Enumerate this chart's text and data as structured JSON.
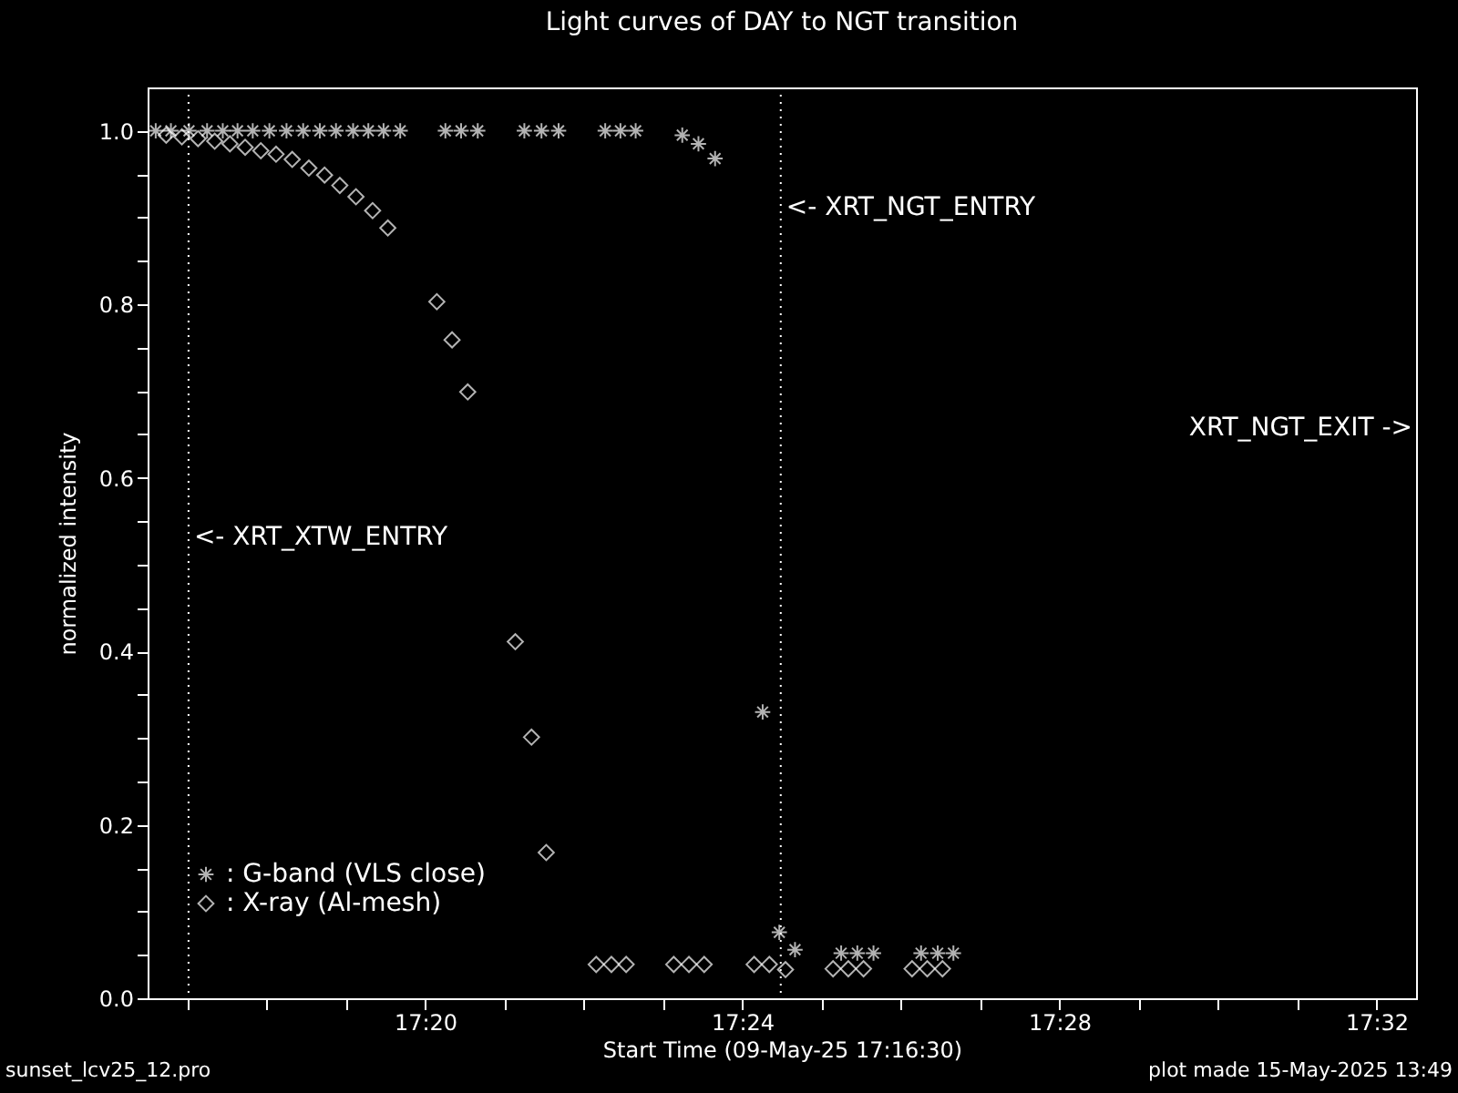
{
  "chart_data": {
    "type": "scatter",
    "title": "Light curves of DAY to NGT transition",
    "xlabel": "Start Time (09-May-25 17:16:30)",
    "ylabel": "normalized intensity",
    "xlim": [
      17.275,
      17.541667
    ],
    "xticks": [
      {
        "value": 17.283333,
        "label": null
      },
      {
        "value": 17.3,
        "label": null
      },
      {
        "value": 17.316667,
        "label": null
      },
      {
        "value": 17.333333,
        "label": "17:20"
      },
      {
        "value": 17.35,
        "label": null
      },
      {
        "value": 17.366667,
        "label": null
      },
      {
        "value": 17.383333,
        "label": null
      },
      {
        "value": 17.4,
        "label": "17:24"
      },
      {
        "value": 17.416667,
        "label": null
      },
      {
        "value": 17.433333,
        "label": null
      },
      {
        "value": 17.45,
        "label": null
      },
      {
        "value": 17.466667,
        "label": "17:28"
      },
      {
        "value": 17.483333,
        "label": null
      },
      {
        "value": 17.5,
        "label": null
      },
      {
        "value": 17.516667,
        "label": null
      },
      {
        "value": 17.533333,
        "label": "17:32"
      }
    ],
    "ylim": [
      0,
      1.05
    ],
    "yticks": [
      {
        "value": 0,
        "label": "0.0"
      },
      {
        "value": 0.05,
        "label": null
      },
      {
        "value": 0.1,
        "label": null
      },
      {
        "value": 0.15,
        "label": null
      },
      {
        "value": 0.2,
        "label": "0.2"
      },
      {
        "value": 0.25,
        "label": null
      },
      {
        "value": 0.3,
        "label": null
      },
      {
        "value": 0.35,
        "label": null
      },
      {
        "value": 0.4,
        "label": "0.4"
      },
      {
        "value": 0.45,
        "label": null
      },
      {
        "value": 0.5,
        "label": null
      },
      {
        "value": 0.55,
        "label": null
      },
      {
        "value": 0.6,
        "label": "0.6"
      },
      {
        "value": 0.65,
        "label": null
      },
      {
        "value": 0.7,
        "label": null
      },
      {
        "value": 0.75,
        "label": null
      },
      {
        "value": 0.8,
        "label": "0.8"
      },
      {
        "value": 0.85,
        "label": null
      },
      {
        "value": 0.9,
        "label": null
      },
      {
        "value": 0.95,
        "label": null
      },
      {
        "value": 1.0,
        "label": "1.0"
      }
    ],
    "legend": "bottom left",
    "series": [
      {
        "name": ": G-band (VLS close)",
        "color": "#ffffff",
        "marker": "cross",
        "x": [
          17.2767,
          17.2799,
          17.2837,
          17.2875,
          17.2908,
          17.2939,
          17.2971,
          17.3006,
          17.3042,
          17.3077,
          17.3112,
          17.3146,
          17.3182,
          17.3214,
          17.3246,
          17.3281,
          17.3376,
          17.3409,
          17.3444,
          17.3542,
          17.3578,
          17.3614,
          17.3712,
          17.3744,
          17.3776,
          17.3874,
          17.3908,
          17.3943,
          17.4043,
          17.4078,
          17.4111,
          17.4208,
          17.4242,
          17.4276,
          17.4376,
          17.4411,
          17.4444
        ],
        "values": [
          1.0,
          1.0,
          1.0,
          1.0,
          1.0,
          1.0,
          1.0,
          1.0,
          1.0,
          1.0,
          1.0,
          1.0,
          1.0,
          1.0,
          1.0,
          1.0,
          1.0,
          1.0,
          1.0,
          1.0,
          1.0,
          1.0,
          1.0,
          1.0,
          1.0,
          0.995,
          0.985,
          0.968,
          0.33,
          0.076,
          0.056,
          0.052,
          0.052,
          0.052,
          0.052,
          0.052,
          0.052
        ]
      },
      {
        "name": ": X-ray (Al-mesh)",
        "color": "#ffffff",
        "marker": "diamond",
        "x": [
          17.2789,
          17.2822,
          17.2856,
          17.2891,
          17.2923,
          17.2955,
          17.2988,
          17.302,
          17.3054,
          17.3089,
          17.3122,
          17.3154,
          17.3188,
          17.3223,
          17.3255,
          17.3358,
          17.339,
          17.3423,
          17.3523,
          17.3557,
          17.3588,
          17.3693,
          17.3725,
          17.3756,
          17.3856,
          17.3888,
          17.392,
          17.4025,
          17.4057,
          17.4091,
          17.4191,
          17.4223,
          17.4255,
          17.4357,
          17.4389,
          17.4421
        ],
        "values": [
          0.995,
          0.993,
          0.991,
          0.988,
          0.985,
          0.981,
          0.977,
          0.973,
          0.967,
          0.957,
          0.949,
          0.937,
          0.924,
          0.908,
          0.888,
          0.803,
          0.759,
          0.699,
          0.411,
          0.301,
          0.168,
          0.039,
          0.039,
          0.039,
          0.039,
          0.039,
          0.039,
          0.039,
          0.039,
          0.033,
          0.034,
          0.034,
          0.034,
          0.034,
          0.034,
          0.034
        ]
      }
    ],
    "ref_lines": [
      {
        "axis": "x",
        "value": 17.2836,
        "label": "<- XRT_XTW_ENTRY",
        "color": "#ffffff",
        "line_style": "dotted"
      },
      {
        "axis": "x",
        "value": 17.4081,
        "label": "<- XRT_NGT_ENTRY",
        "color": "#ffffff",
        "line_style": "dotted"
      }
    ],
    "annotations": [
      "XRT_NGT_EXIT ->",
      "sunset_lcv25_12.pro",
      "plot made 15-May-2025 13:49"
    ]
  }
}
